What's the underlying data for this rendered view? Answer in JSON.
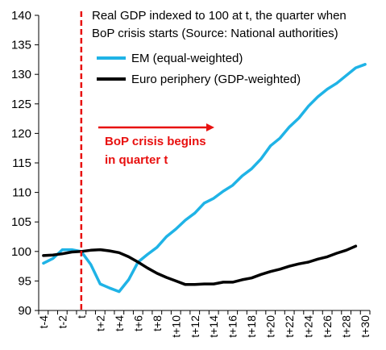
{
  "chart_data": {
    "type": "line",
    "title": "",
    "xlabel": "",
    "ylabel": "",
    "ylim": [
      90,
      140
    ],
    "yticks": [
      90,
      95,
      100,
      105,
      110,
      115,
      120,
      125,
      130,
      135,
      140
    ],
    "x": [
      "t-4",
      "t-3",
      "t-2",
      "t-1",
      "t",
      "t+1",
      "t+2",
      "t+3",
      "t+4",
      "t+5",
      "t+6",
      "t+7",
      "t+8",
      "t+9",
      "t+10",
      "t+11",
      "t+12",
      "t+13",
      "t+14",
      "t+15",
      "t+16",
      "t+17",
      "t+18",
      "t+19",
      "t+20",
      "t+21",
      "t+22",
      "t+23",
      "t+24",
      "t+25",
      "t+26",
      "t+27",
      "t+28",
      "t+29",
      "t+30"
    ],
    "xtick_labels": [
      "t-4",
      "t-2",
      "t",
      "t+2",
      "t+4",
      "t+6",
      "t+8",
      "t+10",
      "t+12",
      "t+14",
      "t+16",
      "t+18",
      "t+20",
      "t+22",
      "t+24",
      "t+26",
      "t+28",
      "t+30"
    ],
    "grid": false,
    "legend_position": "top-right",
    "annotations": {
      "note_line1": "Real GDP indexed to 100 at t, the quarter when",
      "note_line2": "BoP crisis starts (Source: National authorities)",
      "crisis_line1": "BoP crisis begins",
      "crisis_line2": "in quarter t"
    },
    "marker_x": "t",
    "colors": {
      "em": "#1fb3e6",
      "euro": "#000000",
      "crisis": "#e8100f"
    },
    "series": [
      {
        "name": "EM (equal-weighted)",
        "values": [
          98.0,
          98.8,
          100.3,
          100.3,
          100.0,
          97.8,
          94.5,
          93.8,
          93.2,
          95.2,
          98.2,
          99.5,
          100.7,
          102.5,
          103.8,
          105.3,
          106.5,
          108.2,
          109.0,
          110.2,
          111.2,
          112.8,
          114.0,
          115.7,
          117.9,
          119.2,
          121.1,
          122.6,
          124.6,
          126.2,
          127.5,
          128.5,
          129.8,
          131.1,
          131.7
        ]
      },
      {
        "name": "Euro periphery (GDP-weighted)",
        "values": [
          99.3,
          99.4,
          99.6,
          99.9,
          100.0,
          100.2,
          100.3,
          100.1,
          99.8,
          99.1,
          98.2,
          97.2,
          96.3,
          95.6,
          95.0,
          94.4,
          94.4,
          94.5,
          94.5,
          94.8,
          94.8,
          95.2,
          95.5,
          96.1,
          96.6,
          97.0,
          97.5,
          97.9,
          98.2,
          98.7,
          99.1,
          99.7,
          100.2,
          100.9,
          null
        ]
      }
    ]
  }
}
